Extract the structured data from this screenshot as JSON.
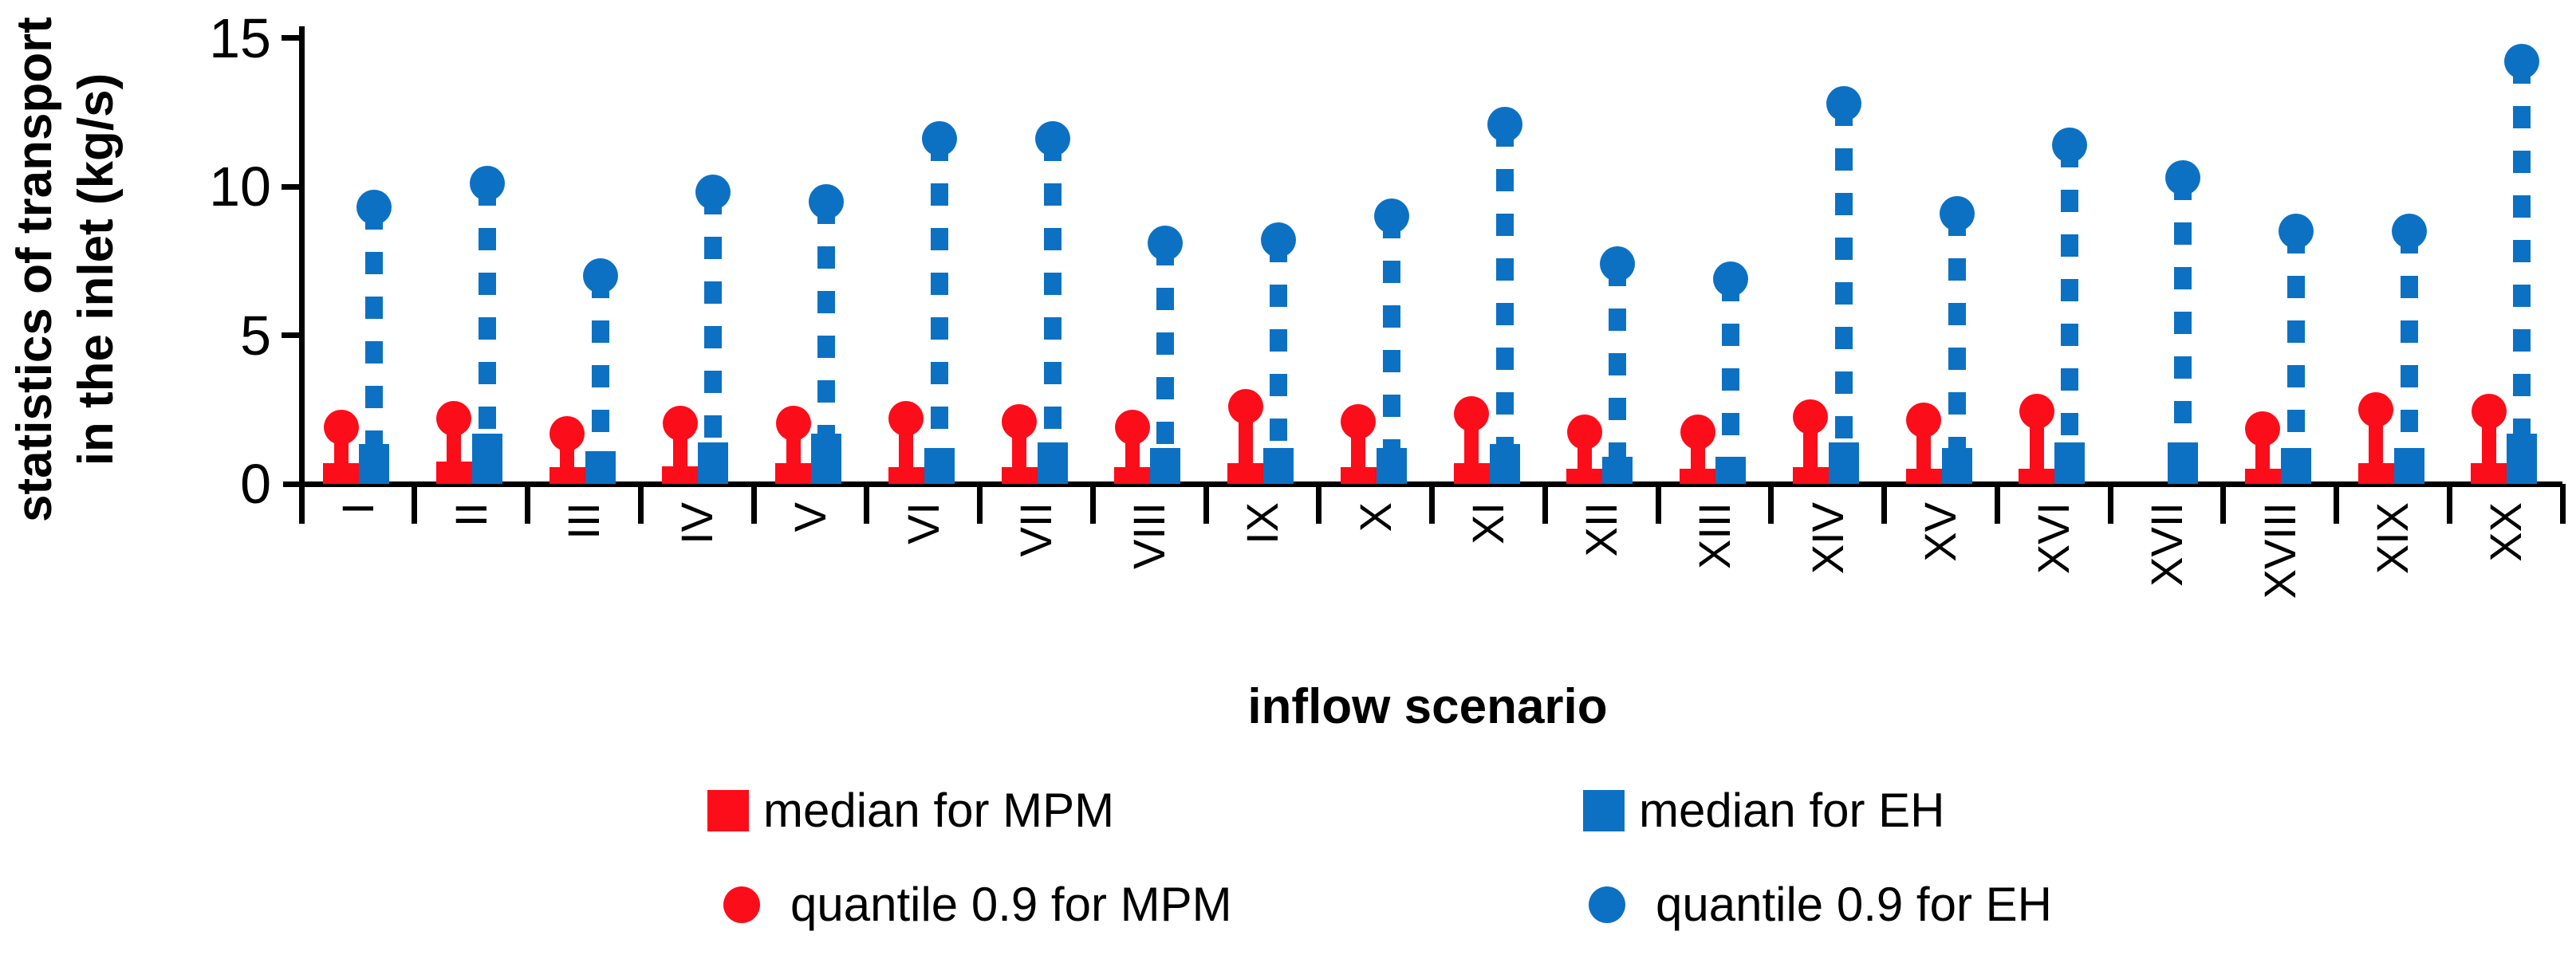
{
  "colors": {
    "mpm_red": "#FC0D1A",
    "eh_blue": "#0C71C3",
    "axis_black": "#000000"
  },
  "y_axis": {
    "title_line1": "statistics of transport",
    "title_line2": "in the inlet (kg/s)",
    "ticks": [
      0,
      5,
      10,
      15
    ]
  },
  "x_axis": {
    "title": "inflow scenario"
  },
  "legend": {
    "median_mpm": "median for MPM",
    "median_eh": "median for EH",
    "quantile_mpm": "quantile 0.9 for MPM",
    "quantile_eh": "quantile 0.9 for EH"
  },
  "chart_data": {
    "type": "bar",
    "title": "",
    "xlabel": "inflow scenario",
    "ylabel": "statistics of transport in the inlet (kg/s)",
    "ylim": [
      0,
      15
    ],
    "ytick_values": [
      0,
      5,
      10,
      15
    ],
    "grid": false,
    "legend_position": "bottom",
    "categories": [
      "I",
      "II",
      "III",
      "IV",
      "V",
      "VI",
      "VII",
      "VIII",
      "IX",
      "X",
      "XI",
      "XII",
      "XIII",
      "XIV",
      "XV",
      "XVI",
      "XVII",
      "XVIII",
      "XIX",
      "XX"
    ],
    "series": [
      {
        "name": "median for MPM",
        "marker": "bar",
        "color": "#FC0D1A",
        "values": [
          0.7,
          0.75,
          0.55,
          0.6,
          0.7,
          0.55,
          0.55,
          0.55,
          0.7,
          0.55,
          0.7,
          0.5,
          0.5,
          0.55,
          0.5,
          0.5,
          0,
          0.5,
          0.7,
          0.7
        ]
      },
      {
        "name": "median for EH",
        "marker": "bar",
        "color": "#0C71C3",
        "values": [
          1.35,
          1.7,
          1.1,
          1.4,
          1.7,
          1.2,
          1.4,
          1.2,
          1.2,
          1.2,
          1.35,
          0.9,
          0.9,
          1.4,
          1.2,
          1.4,
          1.4,
          1.2,
          1.2,
          1.7
        ]
      },
      {
        "name": "quantile 0.9 for MPM",
        "marker": "stem-dot-solid",
        "color": "#FC0D1A",
        "values": [
          1.9,
          2.2,
          1.7,
          2.05,
          2.05,
          2.2,
          2.1,
          1.9,
          2.6,
          2.1,
          2.35,
          1.75,
          1.75,
          2.25,
          2.15,
          2.45,
          null,
          1.85,
          2.5,
          2.45
        ]
      },
      {
        "name": "quantile 0.9 for EH",
        "marker": "stem-dot-dashed",
        "color": "#0C71C3",
        "values": [
          9.3,
          10.1,
          7.0,
          9.8,
          9.5,
          11.6,
          11.6,
          8.1,
          8.2,
          9.0,
          12.1,
          7.4,
          6.9,
          12.8,
          9.1,
          11.4,
          10.3,
          8.5,
          8.5,
          14.2
        ]
      }
    ]
  }
}
